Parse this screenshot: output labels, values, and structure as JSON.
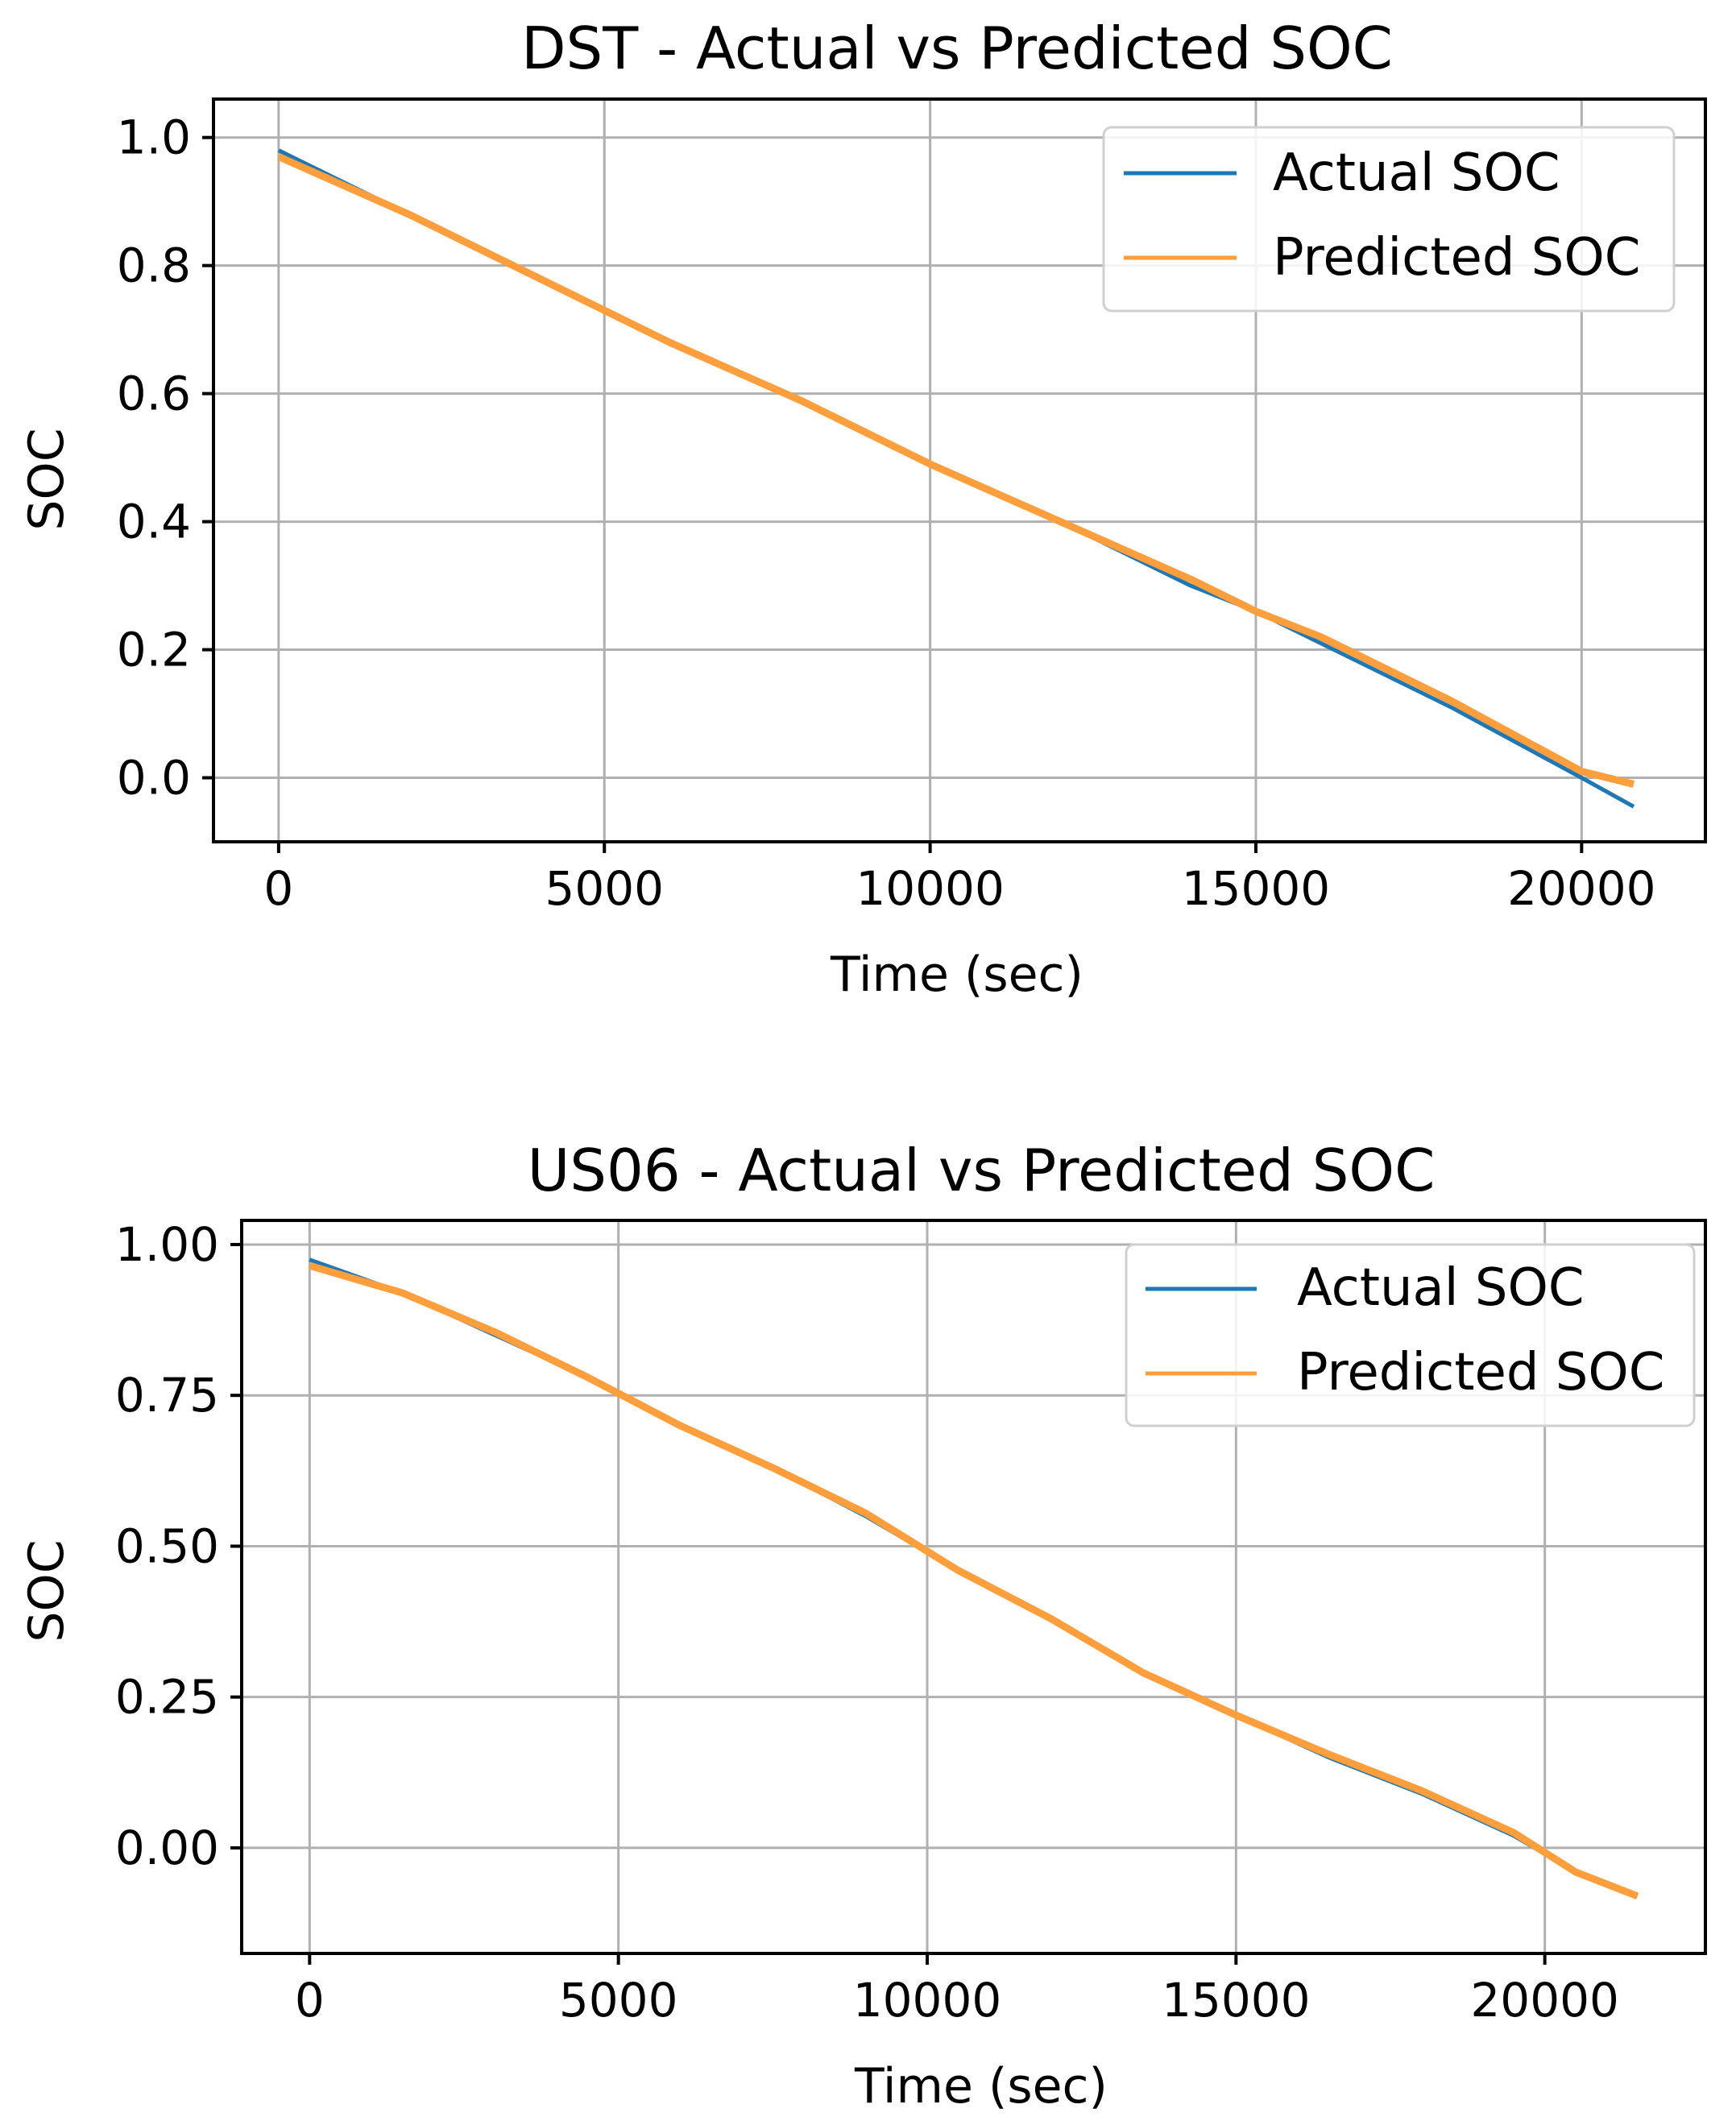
{
  "chart_data": [
    {
      "type": "line",
      "title": "DST - Actual vs Predicted SOC",
      "xlabel": "Time (sec)",
      "ylabel": "SOC",
      "xlim": [
        -1000,
        21900
      ],
      "ylim": [
        -0.1,
        1.06
      ],
      "xticks": [
        0,
        5000,
        10000,
        15000,
        20000
      ],
      "xtick_labels": [
        "0",
        "5000",
        "10000",
        "15000",
        "20000"
      ],
      "yticks": [
        0.0,
        0.2,
        0.4,
        0.6,
        0.8,
        1.0
      ],
      "ytick_labels": [
        "0.0",
        "0.2",
        "0.4",
        "0.6",
        "0.8",
        "1.0"
      ],
      "grid": true,
      "legend_position": "top-right",
      "series": [
        {
          "name": "Actual SOC",
          "color": "#1f77b4",
          "x": [
            0,
            2000,
            4000,
            6000,
            8000,
            10000,
            12000,
            14000,
            15000,
            16000,
            18000,
            20000,
            20800
          ],
          "y": [
            0.98,
            0.88,
            0.78,
            0.68,
            0.59,
            0.49,
            0.4,
            0.3,
            0.26,
            0.21,
            0.11,
            0.0,
            -0.045
          ]
        },
        {
          "name": "Predicted SOC",
          "color": "#ff9e3d",
          "x": [
            0,
            2000,
            4000,
            6000,
            8000,
            10000,
            12000,
            14000,
            15000,
            16000,
            18000,
            20000,
            20800
          ],
          "y": [
            0.97,
            0.88,
            0.78,
            0.68,
            0.59,
            0.49,
            0.4,
            0.31,
            0.26,
            0.22,
            0.12,
            0.01,
            -0.01
          ]
        }
      ]
    },
    {
      "type": "line",
      "title": "US06 - Actual vs Predicted SOC",
      "xlabel": "Time (sec)",
      "ylabel": "SOC",
      "xlim": [
        -1100,
        22600
      ],
      "ylim": [
        -0.175,
        1.04
      ],
      "xticks": [
        0,
        5000,
        10000,
        15000,
        20000
      ],
      "xtick_labels": [
        "0",
        "5000",
        "10000",
        "15000",
        "20000"
      ],
      "yticks": [
        0.0,
        0.25,
        0.5,
        0.75,
        1.0
      ],
      "ytick_labels": [
        "0.00",
        "0.25",
        "0.50",
        "0.75",
        "1.00"
      ],
      "grid": true,
      "legend_position": "top-right",
      "series": [
        {
          "name": "Actual SOC",
          "color": "#1f77b4",
          "x": [
            0,
            1500,
            3000,
            4500,
            6000,
            7500,
            9000,
            10500,
            12000,
            13500,
            15000,
            16500,
            18000,
            19500,
            20500,
            21500
          ],
          "y": [
            0.975,
            0.92,
            0.85,
            0.78,
            0.7,
            0.63,
            0.55,
            0.46,
            0.38,
            0.29,
            0.22,
            0.15,
            0.09,
            0.02,
            -0.04,
            -0.08
          ]
        },
        {
          "name": "Predicted SOC",
          "color": "#ff9e3d",
          "x": [
            0,
            1500,
            3000,
            4500,
            6000,
            7500,
            9000,
            10500,
            12000,
            13500,
            15000,
            16500,
            18000,
            19500,
            20500,
            21500
          ],
          "y": [
            0.965,
            0.92,
            0.855,
            0.78,
            0.7,
            0.63,
            0.555,
            0.46,
            0.38,
            0.29,
            0.22,
            0.155,
            0.095,
            0.025,
            -0.04,
            -0.08
          ]
        }
      ]
    }
  ]
}
